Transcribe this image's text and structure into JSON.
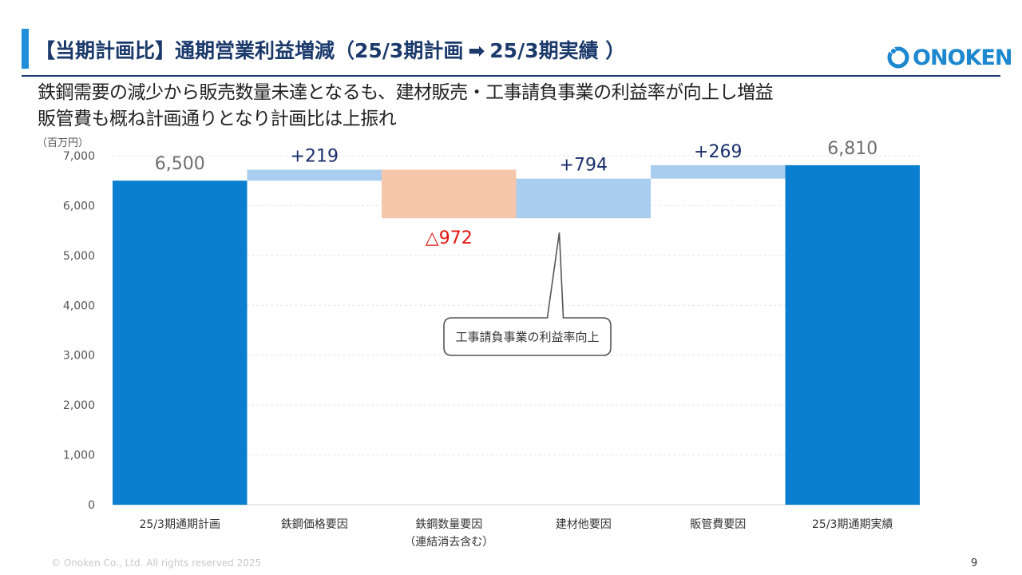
{
  "header": {
    "title_left": "【当期計画比】通期営業利益増減（25/3期計画",
    "title_arrow": "➡",
    "title_right": "25/3期実績 ）",
    "logo_text": "ONOKEN"
  },
  "subtitle": {
    "line1": "鉄鋼需要の減少から販売数量未達となるも、建材販売・工事請負事業の利益率が向上し増益",
    "line2": "販管費も概ね計画通りとなり計画比は上振れ"
  },
  "chart_data": {
    "type": "waterfall",
    "unit_label": "（百万円）",
    "ylim": [
      0,
      7000
    ],
    "y_ticks": [
      {
        "value": 0,
        "label": "0"
      },
      {
        "value": 1000,
        "label": "1,000"
      },
      {
        "value": 2000,
        "label": "2,000"
      },
      {
        "value": 3000,
        "label": "3,000"
      },
      {
        "value": 4000,
        "label": "4,000"
      },
      {
        "value": 5000,
        "label": "5,000"
      },
      {
        "value": 6000,
        "label": "6,000"
      },
      {
        "value": 7000,
        "label": "7,000"
      }
    ],
    "grid": true,
    "bars": [
      {
        "category": "25/3期通期計画",
        "sublabel": "",
        "kind": "total",
        "start": 0,
        "end": 6500,
        "label": "6,500"
      },
      {
        "category": "鉄鋼価格要因",
        "sublabel": "",
        "kind": "increase",
        "start": 6500,
        "end": 6719,
        "label": "+219"
      },
      {
        "category": "鉄鋼数量要因",
        "sublabel": "（連結消去含む）",
        "kind": "decrease",
        "start": 6719,
        "end": 5747,
        "label": "△972"
      },
      {
        "category": "建材他要因",
        "sublabel": "",
        "kind": "increase",
        "start": 5747,
        "end": 6541,
        "label": "+794"
      },
      {
        "category": "販管費要因",
        "sublabel": "",
        "kind": "increase",
        "start": 6541,
        "end": 6810,
        "label": "+269"
      },
      {
        "category": "25/3期通期実績",
        "sublabel": "",
        "kind": "total",
        "start": 0,
        "end": 6810,
        "label": "6,810"
      }
    ],
    "colors": {
      "total": "#0a7fcf",
      "increase": "#a9cdee",
      "decrease": "#f5c6aa",
      "total_label": "#6e6e6e",
      "increase_label": "#1b2f6b",
      "decrease_label": "#e3160f"
    },
    "callout": {
      "text": "工事請負事業の利益率向上",
      "target_bar": 3
    }
  },
  "footer": {
    "copyright": "© Onoken Co., Ltd. All rights reserved 2025",
    "page": "9"
  }
}
